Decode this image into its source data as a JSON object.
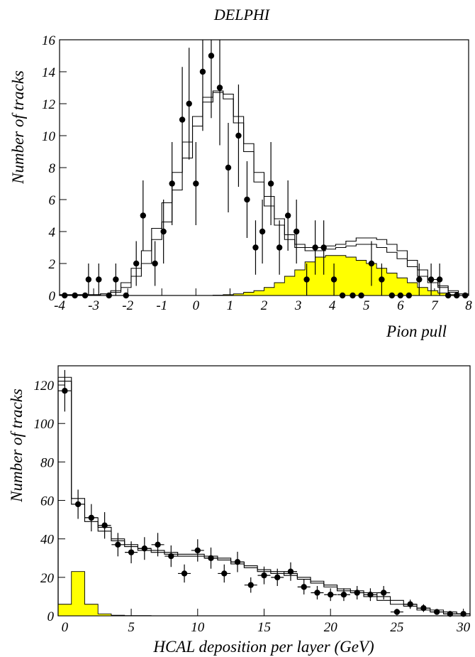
{
  "figure_title": "DELPHI",
  "chart_data": [
    {
      "type": "histogram",
      "title": "DELPHI",
      "xlabel": "Pion pull",
      "ylabel": "Number of tracks",
      "xlim": [
        -4,
        8
      ],
      "ylim": [
        0,
        16
      ],
      "x_ticks": [
        -4,
        -3,
        -2,
        -1,
        0,
        1,
        2,
        3,
        4,
        5,
        6,
        7,
        8
      ],
      "y_ticks": [
        0,
        2,
        4,
        6,
        8,
        10,
        12,
        14,
        16
      ],
      "bin_width": 0.3,
      "x_start": -4,
      "mc_total": [
        0.05,
        0.05,
        0.05,
        0.05,
        0.1,
        0.2,
        0.5,
        1.2,
        2.0,
        3.5,
        4.6,
        6.6,
        8.6,
        10.6,
        12.1,
        12.7,
        12.6,
        11.2,
        9.5,
        7.7,
        6.2,
        4.8,
        3.8,
        3.2,
        3.0,
        3.0,
        3.1,
        3.2,
        3.4,
        3.6,
        3.6,
        3.5,
        3.2,
        2.8,
        2.2,
        1.6,
        1.0,
        0.6,
        0.3,
        0.1
      ],
      "mc_total_shifted": [
        0.05,
        0.05,
        0.05,
        0.05,
        0.1,
        0.3,
        0.8,
        1.7,
        2.8,
        4.2,
        5.8,
        7.7,
        9.6,
        11.2,
        12.4,
        12.8,
        12.3,
        10.8,
        9.0,
        7.1,
        5.6,
        4.4,
        3.5,
        3.0,
        2.8,
        2.8,
        2.9,
        3.0,
        3.1,
        3.2,
        3.2,
        3.0,
        2.7,
        2.3,
        1.8,
        1.2,
        0.8,
        0.5,
        0.2,
        0.1
      ],
      "background": [
        0,
        0,
        0,
        0,
        0,
        0,
        0,
        0,
        0,
        0,
        0,
        0,
        0,
        0,
        0,
        0.02,
        0.05,
        0.1,
        0.2,
        0.3,
        0.5,
        0.8,
        1.2,
        1.6,
        2.1,
        2.4,
        2.5,
        2.5,
        2.4,
        2.2,
        2.0,
        1.7,
        1.4,
        1.1,
        0.8,
        0.5,
        0.3,
        0.15,
        0.05,
        0
      ],
      "points": [
        {
          "x": -3.85,
          "y": 0,
          "err": 0
        },
        {
          "x": -3.55,
          "y": 0,
          "err": 0
        },
        {
          "x": -3.25,
          "y": 0,
          "err": 0
        },
        {
          "x": -3.15,
          "y": 1,
          "err": 1
        },
        {
          "x": -2.85,
          "y": 1,
          "err": 1
        },
        {
          "x": -2.55,
          "y": 0,
          "err": 0
        },
        {
          "x": -2.35,
          "y": 1,
          "err": 1
        },
        {
          "x": -2.05,
          "y": 0,
          "err": 0
        },
        {
          "x": -1.75,
          "y": 2,
          "err": 1.4
        },
        {
          "x": -1.55,
          "y": 5,
          "err": 2.2
        },
        {
          "x": -1.2,
          "y": 2,
          "err": 1.4
        },
        {
          "x": -0.95,
          "y": 4,
          "err": 2
        },
        {
          "x": -0.7,
          "y": 7,
          "err": 2.6
        },
        {
          "x": -0.4,
          "y": 11,
          "err": 3.3
        },
        {
          "x": -0.2,
          "y": 12,
          "err": 3.5
        },
        {
          "x": 0.0,
          "y": 7,
          "err": 2.6
        },
        {
          "x": 0.2,
          "y": 14,
          "err": 3.7
        },
        {
          "x": 0.45,
          "y": 15,
          "err": 3.9
        },
        {
          "x": 0.7,
          "y": 13,
          "err": 3.6
        },
        {
          "x": 0.95,
          "y": 8,
          "err": 2.8
        },
        {
          "x": 1.25,
          "y": 10,
          "err": 3.2
        },
        {
          "x": 1.5,
          "y": 6,
          "err": 2.4
        },
        {
          "x": 1.75,
          "y": 3,
          "err": 1.7
        },
        {
          "x": 1.95,
          "y": 4,
          "err": 2
        },
        {
          "x": 2.2,
          "y": 7,
          "err": 2.6
        },
        {
          "x": 2.45,
          "y": 3,
          "err": 1.7
        },
        {
          "x": 2.7,
          "y": 5,
          "err": 2.2
        },
        {
          "x": 2.95,
          "y": 4,
          "err": 2
        },
        {
          "x": 3.25,
          "y": 1,
          "err": 1
        },
        {
          "x": 3.5,
          "y": 3,
          "err": 1.7
        },
        {
          "x": 3.75,
          "y": 3,
          "err": 1.7
        },
        {
          "x": 4.05,
          "y": 1,
          "err": 1
        },
        {
          "x": 4.3,
          "y": 0,
          "err": 0
        },
        {
          "x": 4.6,
          "y": 0,
          "err": 0
        },
        {
          "x": 4.85,
          "y": 0,
          "err": 0
        },
        {
          "x": 5.15,
          "y": 2,
          "err": 1.4
        },
        {
          "x": 5.45,
          "y": 1,
          "err": 1
        },
        {
          "x": 5.75,
          "y": 0,
          "err": 0
        },
        {
          "x": 6.0,
          "y": 0,
          "err": 0
        },
        {
          "x": 6.25,
          "y": 0,
          "err": 0
        },
        {
          "x": 6.55,
          "y": 1,
          "err": 1
        },
        {
          "x": 6.9,
          "y": 1,
          "err": 1
        },
        {
          "x": 7.15,
          "y": 1,
          "err": 1
        },
        {
          "x": 7.4,
          "y": 0,
          "err": 0
        },
        {
          "x": 7.65,
          "y": 0,
          "err": 0
        },
        {
          "x": 7.9,
          "y": 0,
          "err": 0
        }
      ]
    },
    {
      "type": "histogram",
      "title": "",
      "xlabel": "HCAL deposition per layer (GeV)",
      "ylabel": "Number of tracks",
      "xlim": [
        -0.5,
        30.5
      ],
      "ylim": [
        0,
        130
      ],
      "x_ticks": [
        0,
        5,
        10,
        15,
        20,
        25,
        30
      ],
      "y_ticks": [
        0,
        20,
        40,
        60,
        80,
        100,
        120
      ],
      "bin_width": 1,
      "x_start": -0.5,
      "mc_total": [
        124,
        61,
        51,
        46,
        40,
        37,
        35,
        34,
        33,
        32,
        32,
        31,
        30,
        28,
        26,
        24,
        23,
        22,
        20,
        18,
        16,
        14,
        13,
        12,
        10,
        8,
        6,
        4,
        3,
        2,
        1
      ],
      "mc_total_shifted": [
        122,
        58,
        49,
        44,
        39,
        36,
        34,
        33,
        32,
        31,
        31,
        30,
        29,
        27,
        25,
        23,
        22,
        21,
        19,
        17,
        15,
        13,
        12,
        10,
        8,
        6,
        5,
        3,
        2,
        1,
        1
      ],
      "background": [
        6,
        23,
        6,
        1,
        0.3,
        0.1,
        0.1,
        0,
        0,
        0,
        0,
        0,
        0,
        0,
        0,
        0,
        0,
        0,
        0,
        0,
        0,
        0,
        0,
        0,
        0,
        0,
        0,
        0,
        0,
        0,
        0
      ],
      "points": [
        {
          "x": 0,
          "y": 117,
          "err": 10.8
        },
        {
          "x": 1,
          "y": 58,
          "err": 7.6
        },
        {
          "x": 2,
          "y": 51,
          "err": 7.1
        },
        {
          "x": 3,
          "y": 47,
          "err": 6.9
        },
        {
          "x": 4,
          "y": 37,
          "err": 6.1
        },
        {
          "x": 5,
          "y": 33,
          "err": 5.7
        },
        {
          "x": 6,
          "y": 35,
          "err": 5.9
        },
        {
          "x": 7,
          "y": 37,
          "err": 6.1
        },
        {
          "x": 8,
          "y": 31,
          "err": 5.6
        },
        {
          "x": 9,
          "y": 22,
          "err": 4.7
        },
        {
          "x": 10,
          "y": 34,
          "err": 5.8
        },
        {
          "x": 11,
          "y": 30,
          "err": 5.5
        },
        {
          "x": 12,
          "y": 22,
          "err": 4.7
        },
        {
          "x": 13,
          "y": 28,
          "err": 5.3
        },
        {
          "x": 14,
          "y": 16,
          "err": 4
        },
        {
          "x": 15,
          "y": 21,
          "err": 4.6
        },
        {
          "x": 16,
          "y": 20,
          "err": 4.5
        },
        {
          "x": 17,
          "y": 23,
          "err": 4.8
        },
        {
          "x": 18,
          "y": 15,
          "err": 3.9
        },
        {
          "x": 19,
          "y": 12,
          "err": 3.5
        },
        {
          "x": 20,
          "y": 11,
          "err": 3.3
        },
        {
          "x": 21,
          "y": 11,
          "err": 3.3
        },
        {
          "x": 22,
          "y": 12,
          "err": 3.5
        },
        {
          "x": 23,
          "y": 11,
          "err": 3.3
        },
        {
          "x": 24,
          "y": 12,
          "err": 3.5
        },
        {
          "x": 25,
          "y": 2,
          "err": 1.4
        },
        {
          "x": 26,
          "y": 6,
          "err": 2.4
        },
        {
          "x": 27,
          "y": 4,
          "err": 2
        },
        {
          "x": 28,
          "y": 2,
          "err": 1.4
        },
        {
          "x": 29,
          "y": 1,
          "err": 1
        },
        {
          "x": 30,
          "y": 1,
          "err": 1
        }
      ]
    }
  ]
}
